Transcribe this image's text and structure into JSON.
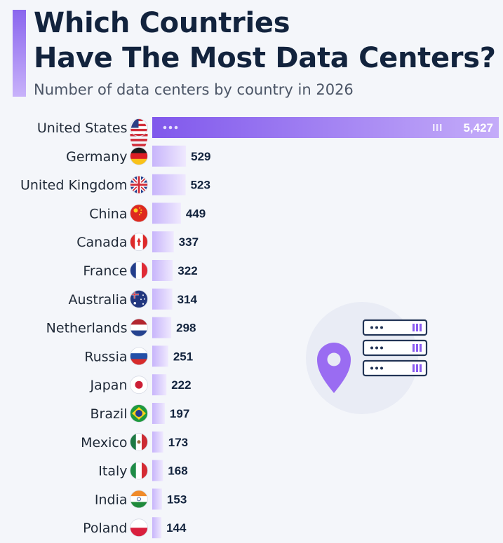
{
  "header": {
    "title_line1": "Which Countries",
    "title_line2": "Have The Most Data Centers?",
    "subtitle": "Number of data centers by country in 2026"
  },
  "colors": {
    "bar_fill_start": "#c8b5fb",
    "bar_fill_end": "#efe9fe",
    "top_bar_start": "#8058ec",
    "top_bar_end": "#c4acf9",
    "text_dark": "#12233d",
    "accent": "#8a66ee"
  },
  "illustration": {
    "icon": "location-pin-server-rack-icon"
  },
  "chart_data": {
    "type": "bar",
    "orientation": "horizontal",
    "title": "Which Countries Have The Most Data Centers?",
    "subtitle": "Number of data centers by country in 2026",
    "categories": [
      "United States",
      "Germany",
      "United Kingdom",
      "China",
      "Canada",
      "France",
      "Australia",
      "Netherlands",
      "Russia",
      "Japan",
      "Brazil",
      "Mexico",
      "Italy",
      "India",
      "Poland"
    ],
    "values": [
      5427,
      529,
      523,
      449,
      337,
      322,
      314,
      298,
      251,
      222,
      197,
      173,
      168,
      153,
      144
    ],
    "value_labels": [
      "5,427",
      "529",
      "523",
      "449",
      "337",
      "322",
      "314",
      "298",
      "251",
      "222",
      "197",
      "173",
      "168",
      "153",
      "144"
    ],
    "flags": [
      "us",
      "de",
      "gb",
      "cn",
      "ca",
      "fr",
      "au",
      "nl",
      "ru",
      "jp",
      "br",
      "mx",
      "it",
      "in",
      "pl"
    ],
    "xlim": [
      0,
      5427
    ],
    "xlabel": "",
    "ylabel": "",
    "grid": false,
    "legend": "none"
  }
}
